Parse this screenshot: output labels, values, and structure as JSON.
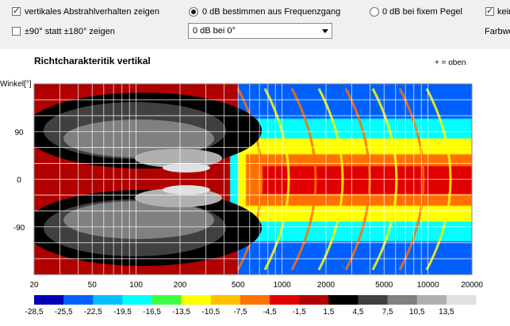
{
  "toolbar": {
    "vertical_checkbox_label": "vertikales Abstrahlverhalten zeigen",
    "ninety_checkbox_label": "±90° statt ±180° zeigen",
    "radio_freq_label": "0 dB bestimmen aus Frequenzgang",
    "radio_fixed_label": "0 dB bei fixem Pegel",
    "select_value": "0 dB bei 0°",
    "right_checkbox_label": "kein",
    "right_label": "Farbwe"
  },
  "chart": {
    "title": "Richtcharakteritik vertikal",
    "note": "+ = oben",
    "ylabel": "Winkel[°]"
  },
  "chart_data": {
    "type": "heatmap",
    "title": "Richtcharakteritik vertikal",
    "ylabel": "Winkel[°]",
    "xscale": "log",
    "xlim": [
      20,
      20000
    ],
    "ylim": [
      -180,
      180
    ],
    "x_ticks": [
      "20",
      "50",
      "100",
      "200",
      "500",
      "1000",
      "2000",
      "5000",
      "10000",
      "20000"
    ],
    "x_tick_values": [
      20,
      50,
      100,
      200,
      500,
      1000,
      2000,
      5000,
      10000,
      20000
    ],
    "y_ticks": [
      "90",
      "0",
      "-90"
    ],
    "y_tick_values": [
      90,
      0,
      -90
    ],
    "color_scale": {
      "labels": [
        "-28,5",
        "-25,5",
        "-22,5",
        "-19,5",
        "-16,5",
        "-13,5",
        "-10,5",
        "-7,5",
        "-4,5",
        "-1,5",
        "1,5",
        "4,5",
        "7,5",
        "10,5",
        "13,5"
      ],
      "colors": [
        "#0000b8",
        "#0060ff",
        "#00c0ff",
        "#00ffff",
        "#40ff40",
        "#ffff00",
        "#ffc000",
        "#ff7000",
        "#e00000",
        "#b00000",
        "#000000",
        "#404040",
        "#808080",
        "#b0b0b0",
        "#e0e0e0"
      ]
    }
  }
}
